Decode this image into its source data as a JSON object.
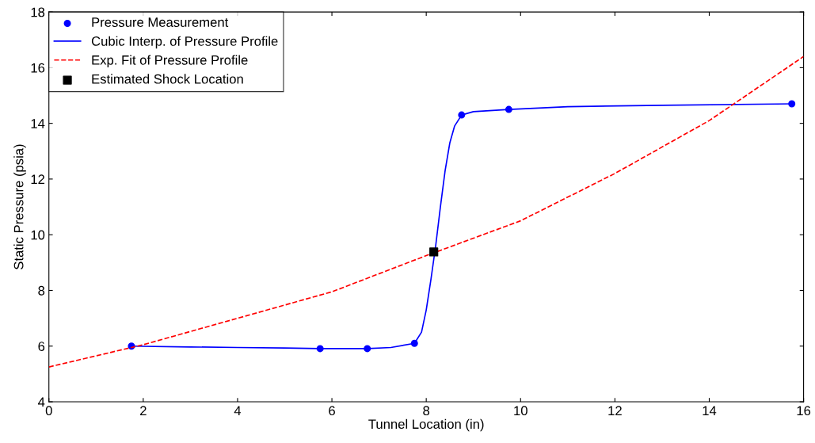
{
  "chart_data": {
    "type": "line",
    "xlabel": "Tunnel Location (in)",
    "ylabel": "Static Pressure (psia)",
    "xlim": [
      0,
      16
    ],
    "ylim": [
      4,
      18
    ],
    "xticks": [
      0,
      2,
      4,
      6,
      8,
      10,
      12,
      14,
      16
    ],
    "yticks": [
      4,
      6,
      8,
      10,
      12,
      14,
      16,
      18
    ],
    "grid": false,
    "legend": "top left",
    "series": [
      {
        "name": "Pressure Measurement",
        "type": "scatter",
        "marker": "circle",
        "color": "#0000ff",
        "x": [
          1.75,
          5.75,
          6.75,
          7.75,
          8.75,
          9.75,
          15.75
        ],
        "values": [
          6.0,
          5.91,
          5.91,
          6.1,
          14.3,
          14.5,
          14.7
        ]
      },
      {
        "name": "Cubic Interp. of Pressure Profile",
        "line_style": "solid",
        "color": "#0000ff",
        "x": [
          1.75,
          3,
          4,
          5,
          5.75,
          6.75,
          7.25,
          7.75,
          7.9,
          8.0,
          8.1,
          8.2,
          8.3,
          8.4,
          8.5,
          8.6,
          8.75,
          9.0,
          9.75,
          11,
          13,
          15.75
        ],
        "values": [
          6.0,
          5.97,
          5.95,
          5.93,
          5.91,
          5.91,
          5.95,
          6.1,
          6.5,
          7.3,
          8.4,
          9.6,
          11.0,
          12.3,
          13.3,
          13.9,
          14.3,
          14.42,
          14.5,
          14.6,
          14.65,
          14.7
        ]
      },
      {
        "name": "Exp. Fit of Pressure Profile",
        "line_style": "dashed",
        "color": "#ff0000",
        "x": [
          0,
          2,
          4,
          6,
          8,
          10,
          12,
          14,
          16
        ],
        "values": [
          5.25,
          6.05,
          7.0,
          7.95,
          9.25,
          10.5,
          12.2,
          14.1,
          16.4
        ]
      },
      {
        "name": "Estimated Shock Location",
        "type": "scatter",
        "marker": "square",
        "color": "#000000",
        "x": [
          8.16
        ],
        "values": [
          9.38
        ]
      }
    ]
  }
}
